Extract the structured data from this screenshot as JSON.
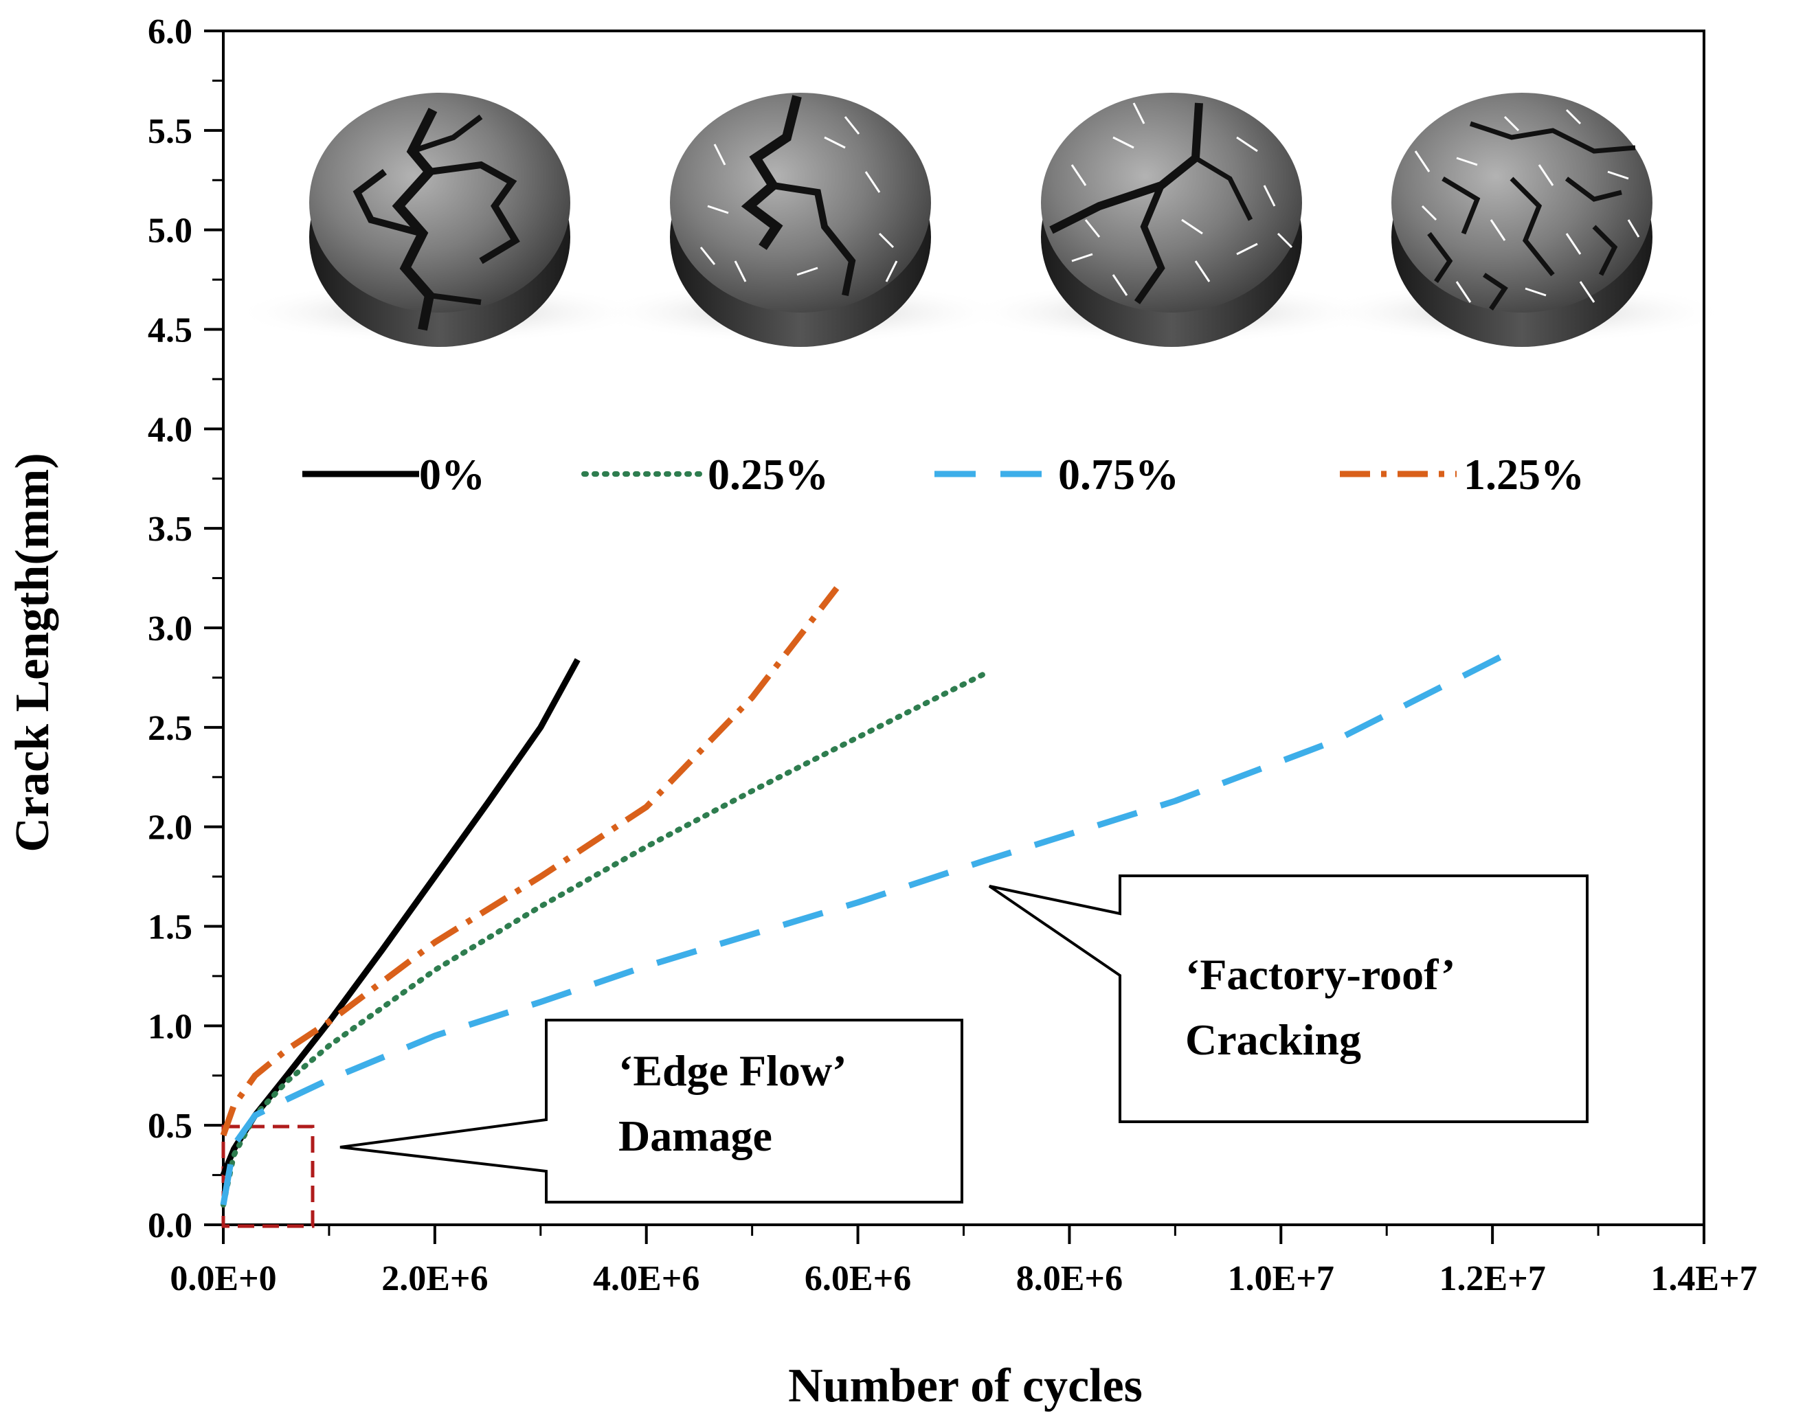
{
  "chart_data": {
    "type": "line",
    "title": "",
    "xlabel": "Number of cycles",
    "ylabel": "Crack Length(mm)",
    "xlim": [
      0,
      14000000
    ],
    "ylim": [
      0,
      6.0
    ],
    "x_ticks": [
      0,
      2000000,
      4000000,
      6000000,
      8000000,
      10000000,
      12000000,
      14000000
    ],
    "x_tick_labels": [
      "0.0E+0",
      "2.0E+6",
      "4.0E+6",
      "6.0E+6",
      "8.0E+6",
      "1.0E+7",
      "1.2E+7",
      "1.4E+7"
    ],
    "y_ticks": [
      0,
      0.5,
      1.0,
      1.5,
      2.0,
      2.5,
      3.0,
      3.5,
      4.0,
      4.5,
      5.0,
      5.5,
      6.0
    ],
    "y_tick_labels": [
      "0.0",
      "0.5",
      "1.0",
      "1.5",
      "2.0",
      "2.5",
      "3.0",
      "3.5",
      "4.0",
      "4.5",
      "5.0",
      "5.5",
      "6.0"
    ],
    "grid": false,
    "legend_placement": "top-inside",
    "series": [
      {
        "name": "0%",
        "color": "#000000",
        "style": "solid",
        "x": [
          0,
          100000,
          300000,
          600000,
          1000000,
          1500000,
          2000000,
          2500000,
          3000000,
          3350000
        ],
        "y": [
          0.25,
          0.38,
          0.55,
          0.75,
          1.02,
          1.38,
          1.75,
          2.12,
          2.5,
          2.84
        ]
      },
      {
        "name": "0.25%",
        "color": "#2e7d4f",
        "style": "dotted",
        "x": [
          0,
          100000,
          300000,
          600000,
          1000000,
          2000000,
          3000000,
          4000000,
          5000000,
          6000000,
          7200000
        ],
        "y": [
          0.1,
          0.35,
          0.55,
          0.72,
          0.9,
          1.28,
          1.6,
          1.9,
          2.18,
          2.45,
          2.77
        ]
      },
      {
        "name": "0.75%",
        "color": "#3daee9",
        "style": "dashed",
        "x": [
          0,
          100000,
          300000,
          600000,
          1000000,
          2000000,
          3000000,
          4000000,
          6000000,
          7200000,
          9000000,
          10500000,
          12100000
        ],
        "y": [
          0.1,
          0.4,
          0.55,
          0.63,
          0.73,
          0.95,
          1.12,
          1.3,
          1.62,
          1.83,
          2.13,
          2.43,
          2.86
        ]
      },
      {
        "name": "1.25%",
        "color": "#d9601a",
        "style": "dashdot",
        "x": [
          0,
          100000,
          300000,
          600000,
          1000000,
          2000000,
          3000000,
          4000000,
          5000000,
          5800000
        ],
        "y": [
          0.45,
          0.6,
          0.75,
          0.88,
          1.02,
          1.42,
          1.75,
          2.1,
          2.65,
          3.2
        ]
      }
    ],
    "annotations": [
      {
        "lines": [
          "‘Edge Flow’",
          "Damage"
        ]
      },
      {
        "lines": [
          "‘Factory-roof’",
          "Cracking"
        ]
      }
    ]
  }
}
